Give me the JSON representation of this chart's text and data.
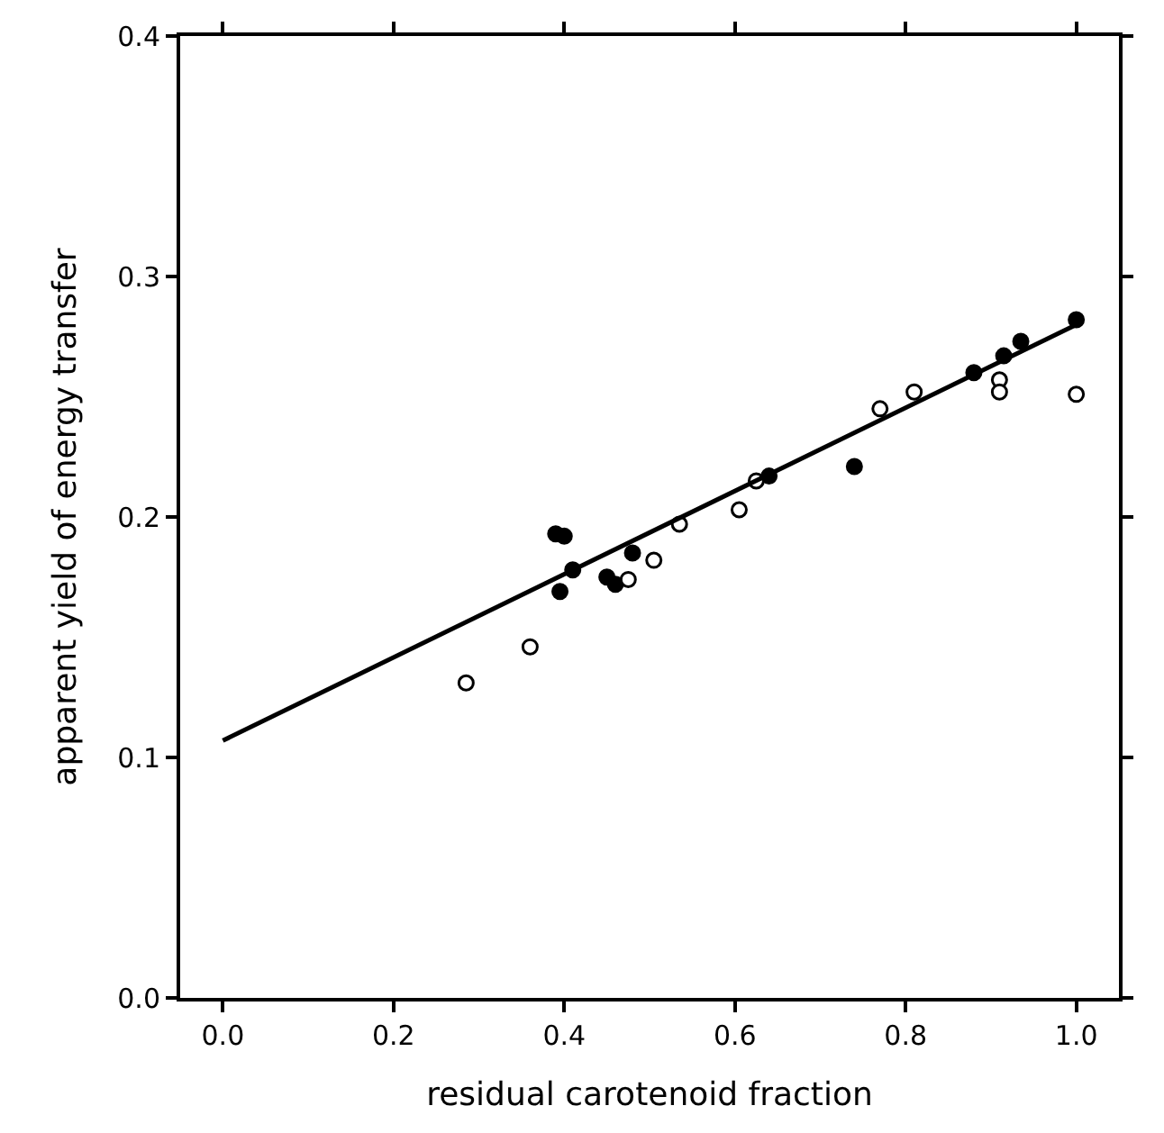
{
  "chart_data": {
    "type": "scatter",
    "xlabel": "residual carotenoid fraction",
    "ylabel": "apparent yield of energy transfer",
    "xlim": [
      -0.05,
      1.05
    ],
    "ylim": [
      0,
      0.4
    ],
    "xticks": [
      {
        "value": 0,
        "label": "0.0"
      },
      0.2,
      0.4,
      0.6,
      0.8,
      {
        "value": 1,
        "label": "1.0"
      }
    ],
    "yticks": [
      {
        "value": 0,
        "label": "0.0"
      },
      0.1,
      0.2,
      0.3,
      0.4
    ],
    "grid": false,
    "series": [
      {
        "marker": "circle",
        "color": "#000000",
        "x": [
          0.39,
          0.4,
          0.395,
          0.41,
          0.45,
          0.46,
          0.48,
          0.64,
          0.74,
          0.88,
          0.915,
          0.935,
          1.0
        ],
        "values": [
          0.193,
          0.192,
          0.169,
          0.178,
          0.175,
          0.172,
          0.185,
          0.217,
          0.221,
          0.26,
          0.267,
          0.273,
          0.282
        ]
      },
      {
        "marker": "circle",
        "color": "#ffffff",
        "x": [
          0.285,
          0.36,
          0.475,
          0.505,
          0.535,
          0.605,
          0.625,
          0.77,
          0.81,
          0.91,
          0.91,
          1.0
        ],
        "values": [
          0.131,
          0.146,
          0.174,
          0.182,
          0.197,
          0.203,
          0.215,
          0.245,
          0.252,
          0.257,
          0.252,
          0.251
        ]
      },
      {
        "type": "line",
        "marker": "none",
        "color": "#000000",
        "line_style": "solid",
        "x": [
          0,
          1.0
        ],
        "values": [
          0.107,
          0.28
        ]
      }
    ]
  }
}
